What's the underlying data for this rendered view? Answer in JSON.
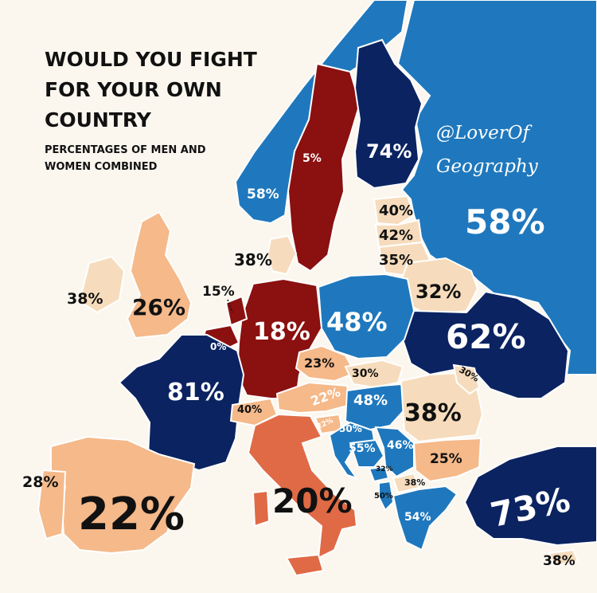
{
  "title": "WOULD YOU FIGHT FOR YOUR OWN COUNTRY",
  "subtitle": "PERCENTAGES OF MEN AND WOMEN COMBINED",
  "credit": "@LoverOf Geography",
  "colors": {
    "background": "#fbf7ef",
    "sea": "#fbf7ef",
    "scale_very_low": "#8b1010",
    "scale_low": "#e06a45",
    "scale_lowmid": "#f5b98a",
    "scale_mid": "#f6dcbc",
    "scale_midhigh": "#1f78bd",
    "scale_high": "#0b2361",
    "borders": "#ffffff"
  },
  "map_data": {
    "Norway": "58%",
    "Sweden": "5%",
    "Finland": "74%",
    "Russia": "58%",
    "Estonia": "40%",
    "Latvia": "42%",
    "Lithuania": "35%",
    "Belarus": "32%",
    "Denmark": "38%",
    "Ireland": "38%",
    "United Kingdom": "26%",
    "Netherlands": "15%",
    "Belgium": "0%",
    "Germany": "18%",
    "Poland": "48%",
    "Ukraine": "62%",
    "France": "81%",
    "Czechia": "23%",
    "Slovakia": "30%",
    "Austria": "22%",
    "Switzerland": "40%",
    "Hungary": "48%",
    "Moldova": "30%",
    "Romania": "38%",
    "Slovenia": "22%",
    "Croatia": "50%",
    "Bosnia": "55%",
    "Serbia": "46%",
    "Bulgaria": "25%",
    "Montenegro": "32%",
    "North Macedonia": "38%",
    "Albania": "50%",
    "Greece": "54%",
    "Turkey": "73%",
    "Cyprus": "38%",
    "Portugal": "28%",
    "Spain": "22%",
    "Italy": "20%"
  }
}
